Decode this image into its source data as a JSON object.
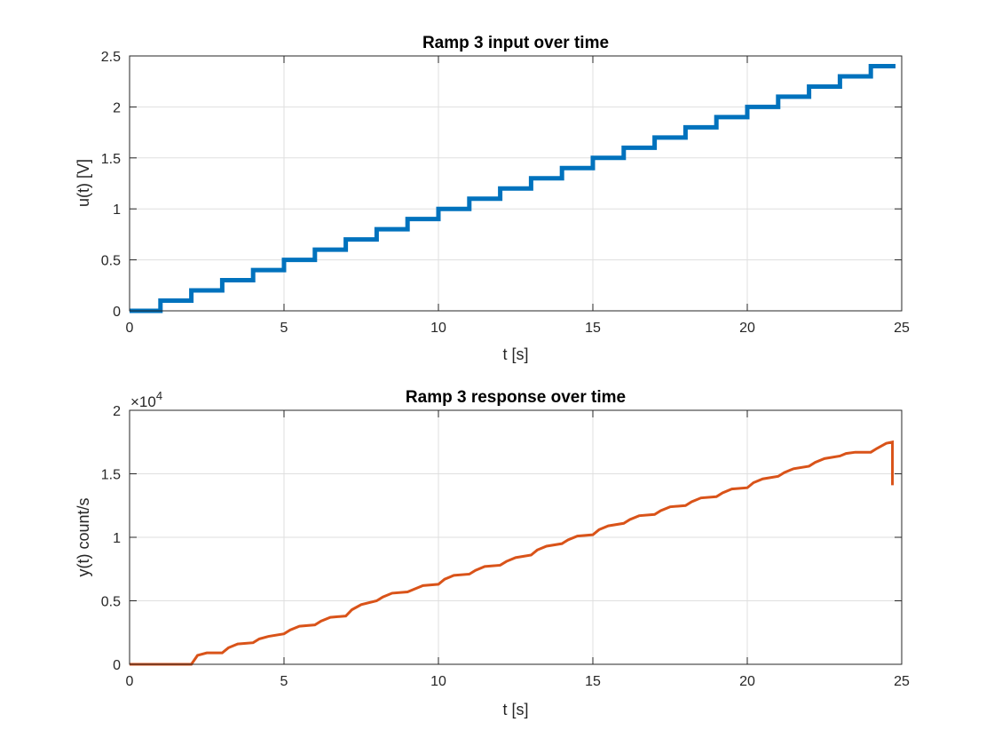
{
  "chart_data": [
    {
      "type": "line",
      "title": "Ramp 3 input over time",
      "xlabel": "t [s]",
      "ylabel": "u(t) [V]",
      "xlim": [
        0,
        25
      ],
      "ylim": [
        0,
        2.5
      ],
      "xticks": [
        "0",
        "5",
        "10",
        "15",
        "20",
        "25"
      ],
      "yticks": [
        "0",
        "0.5",
        "1",
        "1.5",
        "2",
        "2.5"
      ],
      "grid": true,
      "color": "#0072BD",
      "series": [
        {
          "style": "step",
          "x": [
            0,
            1,
            2,
            3,
            4,
            5,
            6,
            7,
            8,
            9,
            10,
            11,
            12,
            13,
            14,
            15,
            16,
            17,
            18,
            19,
            20,
            21,
            22,
            23,
            24,
            24.8
          ],
          "y": [
            0,
            0.1,
            0.2,
            0.3,
            0.4,
            0.5,
            0.6,
            0.7,
            0.8,
            0.9,
            1.0,
            1.1,
            1.2,
            1.3,
            1.4,
            1.5,
            1.6,
            1.7,
            1.8,
            1.9,
            2.0,
            2.1,
            2.2,
            2.3,
            2.4,
            2.4
          ]
        }
      ]
    },
    {
      "type": "line",
      "title": "Ramp 3 response over time",
      "xlabel": "t [s]",
      "ylabel": "y(t) count/s",
      "exponent_label": "×10",
      "exponent_power": "4",
      "xlim": [
        0,
        25
      ],
      "ylim": [
        0,
        2
      ],
      "xticks": [
        "0",
        "5",
        "10",
        "15",
        "20",
        "25"
      ],
      "yticks": [
        "0",
        "0.5",
        "1",
        "1.5",
        "2"
      ],
      "grid": true,
      "color": "#D95319",
      "series": [
        {
          "style": "line",
          "x": [
            0,
            2.0,
            2.2,
            2.5,
            3.0,
            3.2,
            3.5,
            4.0,
            4.2,
            4.5,
            5.0,
            5.2,
            5.5,
            6.0,
            6.2,
            6.5,
            7.0,
            7.2,
            7.5,
            8.0,
            8.2,
            8.5,
            9.0,
            9.2,
            9.5,
            10.0,
            10.2,
            10.5,
            11.0,
            11.2,
            11.5,
            12.0,
            12.2,
            12.5,
            13.0,
            13.2,
            13.5,
            14.0,
            14.2,
            14.5,
            15.0,
            15.2,
            15.5,
            16.0,
            16.2,
            16.5,
            17.0,
            17.2,
            17.5,
            18.0,
            18.2,
            18.5,
            19.0,
            19.2,
            19.5,
            20.0,
            20.2,
            20.5,
            21.0,
            21.2,
            21.5,
            22.0,
            22.2,
            22.5,
            23.0,
            23.2,
            23.5,
            24.0,
            24.2,
            24.5,
            24.7,
            24.7
          ],
          "y": [
            0,
            0,
            0.07,
            0.09,
            0.09,
            0.13,
            0.16,
            0.17,
            0.2,
            0.22,
            0.24,
            0.27,
            0.3,
            0.31,
            0.34,
            0.37,
            0.38,
            0.43,
            0.47,
            0.5,
            0.53,
            0.56,
            0.57,
            0.59,
            0.62,
            0.63,
            0.67,
            0.7,
            0.71,
            0.74,
            0.77,
            0.78,
            0.81,
            0.84,
            0.86,
            0.9,
            0.93,
            0.95,
            0.98,
            1.01,
            1.02,
            1.06,
            1.09,
            1.11,
            1.14,
            1.17,
            1.18,
            1.21,
            1.24,
            1.25,
            1.28,
            1.31,
            1.32,
            1.35,
            1.38,
            1.39,
            1.43,
            1.46,
            1.48,
            1.51,
            1.54,
            1.56,
            1.59,
            1.62,
            1.64,
            1.66,
            1.67,
            1.67,
            1.7,
            1.74,
            1.75,
            1.41
          ]
        }
      ]
    }
  ]
}
